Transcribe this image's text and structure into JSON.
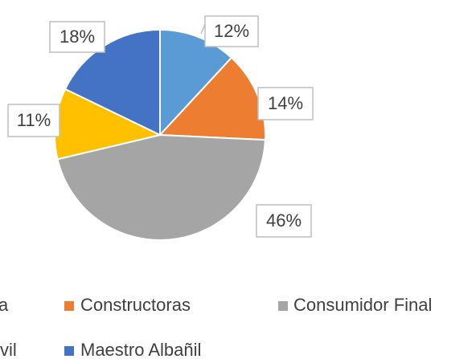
{
  "chart_data": {
    "type": "pie",
    "categories": [
      "a",
      "Constructoras",
      "Consumidor Final",
      "vil",
      "Maestro Albañil"
    ],
    "values": [
      12,
      14,
      46,
      11,
      18
    ],
    "colors": [
      "#5B9BD5",
      "#ED7D31",
      "#A5A5A5",
      "#FFC000",
      "#4472C4"
    ],
    "legend": "bottom"
  }
}
